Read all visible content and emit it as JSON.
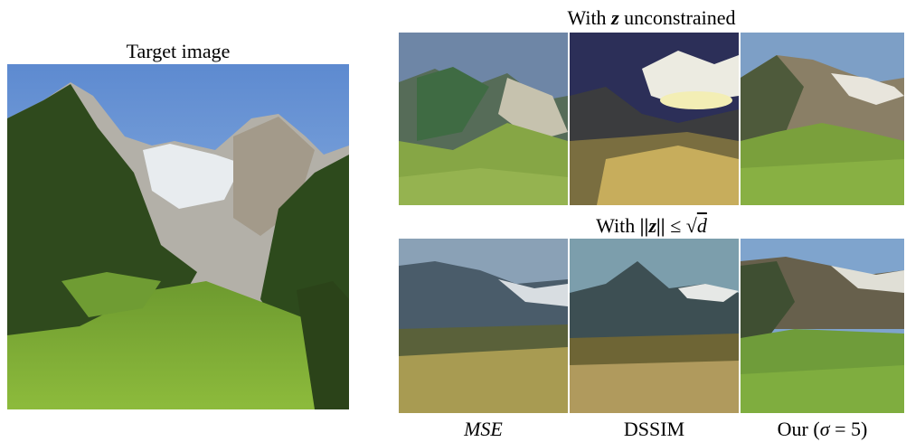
{
  "figure": {
    "target_title": "Target image",
    "unconstrained": {
      "prefix": "With ",
      "var": "z",
      "suffix": " unconstrained"
    },
    "constrained": {
      "prefix": "With ",
      "lhs": "||z||",
      "rel": " ≤ ",
      "sqrt_sym": "√",
      "sqrt_arg": "d"
    },
    "col_labels": {
      "mse": "MSE",
      "dssim": "DSSIM",
      "ours_prefix": "Our (",
      "ours_sigma": "σ",
      "ours_suffix": " = 5)"
    }
  }
}
